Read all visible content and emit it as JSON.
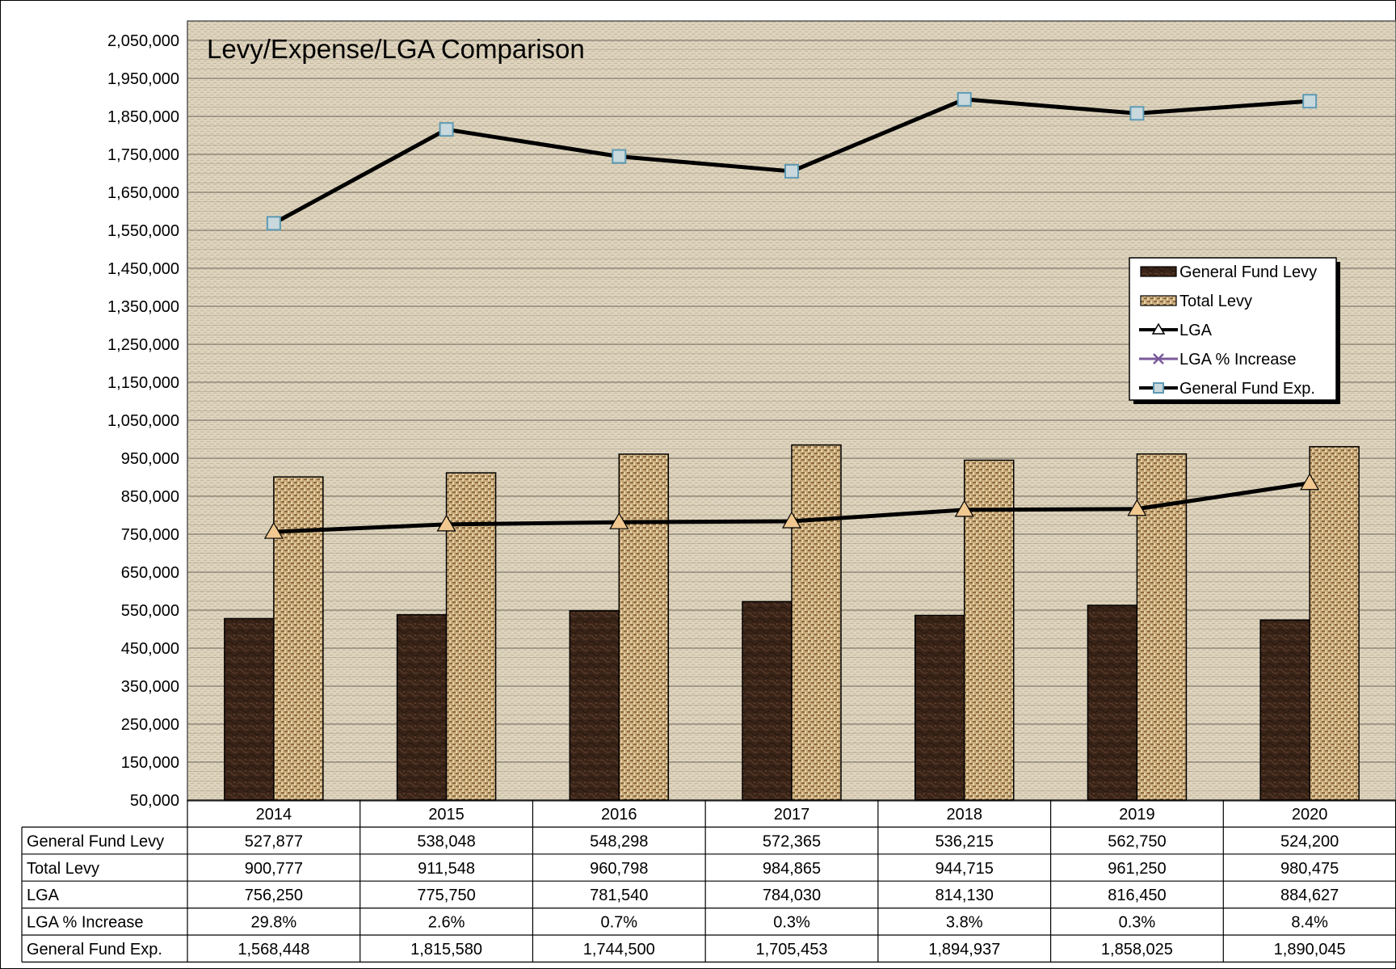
{
  "chart_data": {
    "type": "bar",
    "title": "Levy/Expense/LGA Comparison",
    "categories": [
      "2014",
      "2015",
      "2016",
      "2017",
      "2018",
      "2019",
      "2020"
    ],
    "ylim": [
      50000,
      2050000
    ],
    "yticks": [
      "2,050,000",
      "1,950,000",
      "1,850,000",
      "1,750,000",
      "1,650,000",
      "1,550,000",
      "1,450,000",
      "1,350,000",
      "1,250,000",
      "1,150,000",
      "1,050,000",
      "950,000",
      "850,000",
      "750,000",
      "650,000",
      "550,000",
      "450,000",
      "350,000",
      "250,000",
      "150,000",
      "50,000"
    ],
    "grid": true,
    "legend_position": "right",
    "series": [
      {
        "name": "General Fund Levy",
        "kind": "bar",
        "color": "#3a2418",
        "values": [
          527877,
          538048,
          548298,
          572365,
          536215,
          562750,
          524200
        ]
      },
      {
        "name": "Total Levy",
        "kind": "bar",
        "color": "#c8a878",
        "values": [
          900777,
          911548,
          960798,
          984865,
          944715,
          961250,
          980475
        ]
      },
      {
        "name": "LGA",
        "kind": "line",
        "color": "#000000",
        "marker": "triangle",
        "values": [
          756250,
          775750,
          781540,
          784030,
          814130,
          816450,
          884627
        ]
      },
      {
        "name": "LGA % Increase",
        "kind": "line",
        "color": "#7a5a9a",
        "marker": "x",
        "values": [
          29.8,
          2.6,
          0.7,
          0.3,
          3.8,
          0.3,
          8.4
        ]
      },
      {
        "name": "General Fund Exp.",
        "kind": "line",
        "color": "#000000",
        "marker": "square",
        "values": [
          1568448,
          1815580,
          1744500,
          1705453,
          1894937,
          1858025,
          1890045
        ]
      }
    ],
    "table": {
      "rows": [
        {
          "label": "General Fund Levy",
          "cells": [
            "527,877",
            "538,048",
            "548,298",
            "572,365",
            "536,215",
            "562,750",
            "524,200"
          ]
        },
        {
          "label": "Total Levy",
          "cells": [
            "900,777",
            "911,548",
            "960,798",
            "984,865",
            "944,715",
            "961,250",
            "980,475"
          ]
        },
        {
          "label": "LGA",
          "cells": [
            "756,250",
            "775,750",
            "781,540",
            "784,030",
            "814,130",
            "816,450",
            "884,627"
          ]
        },
        {
          "label": "LGA % Increase",
          "cells": [
            "29.8%",
            "2.6%",
            "0.7%",
            "0.3%",
            "3.8%",
            "0.3%",
            "8.4%"
          ]
        },
        {
          "label": "General Fund Exp.",
          "cells": [
            "1,568,448",
            "1,815,580",
            "1,744,500",
            "1,705,453",
            "1,894,937",
            "1,858,025",
            "1,890,045"
          ]
        }
      ]
    }
  }
}
